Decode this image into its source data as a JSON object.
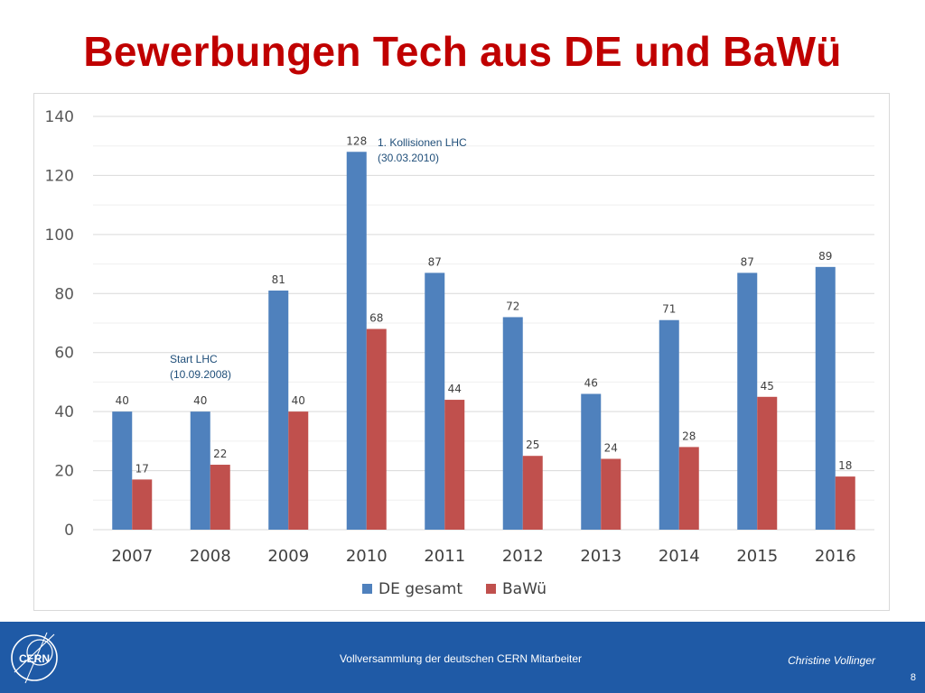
{
  "slide": {
    "title": "Bewerbungen Tech aus DE und BaWü",
    "footer_text": "Vollversammlung der deutschen CERN Mitarbeiter",
    "author": "Christine Vollinger",
    "page_number": "8",
    "logo_text": "CERN"
  },
  "chart_data": {
    "type": "bar",
    "categories": [
      "2007",
      "2008",
      "2009",
      "2010",
      "2011",
      "2012",
      "2013",
      "2014",
      "2015",
      "2016"
    ],
    "series": [
      {
        "name": "DE gesamt",
        "color": "#4f81bd",
        "values": [
          40,
          40,
          81,
          128,
          87,
          72,
          46,
          71,
          87,
          89
        ]
      },
      {
        "name": "BaWü",
        "color": "#c0504d",
        "values": [
          17,
          22,
          40,
          68,
          44,
          25,
          24,
          28,
          45,
          18
        ]
      }
    ],
    "ylim": [
      0,
      140
    ],
    "yticks": [
      0,
      20,
      40,
      60,
      80,
      100,
      120,
      140
    ],
    "grid": true,
    "legend_position": "bottom",
    "annotations": [
      {
        "category": "2008",
        "lines": [
          "Start LHC",
          "(10.09.2008)"
        ],
        "color": "#1f4e79"
      },
      {
        "category": "2010",
        "lines": [
          "1. Kollisionen LHC",
          "(30.03.2010)"
        ],
        "color": "#1f4e79"
      }
    ]
  }
}
